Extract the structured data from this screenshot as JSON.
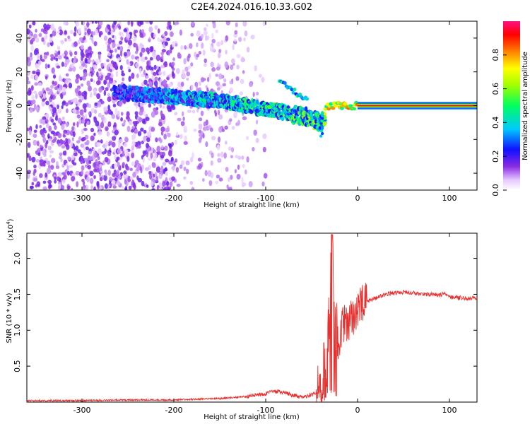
{
  "title": "C2E4.2024.016.10.33.G02",
  "chart_data": [
    {
      "type": "heatmap",
      "xlabel": "Height of straight line (km)",
      "ylabel": "Frequency (Hz)",
      "xlim": [
        -360,
        130
      ],
      "ylim": [
        -50,
        50
      ],
      "xticks": [
        -300,
        -200,
        -100,
        0,
        100
      ],
      "yticks": [
        -40,
        -20,
        0,
        20,
        40
      ],
      "colorbar": {
        "label": "Normalized spectral amplitude",
        "range": [
          0,
          1
        ],
        "ticks": [
          "0.0",
          "0.2",
          "0.4",
          "0.6",
          "0.8"
        ],
        "colormap": "rainbow (white-violet-blue-cyan-green-yellow-red-magenta)"
      },
      "signal_track": [
        {
          "x": -260,
          "y": 8,
          "amp": 0.25
        },
        {
          "x": -220,
          "y": 6,
          "amp": 0.3
        },
        {
          "x": -200,
          "y": 5,
          "amp": 0.35
        },
        {
          "x": -150,
          "y": 3,
          "amp": 0.4
        },
        {
          "x": -120,
          "y": 0,
          "amp": 0.45
        },
        {
          "x": -90,
          "y": -3,
          "amp": 0.45
        },
        {
          "x": -60,
          "y": -6,
          "amp": 0.5
        },
        {
          "x": -40,
          "y": -10,
          "amp": 0.5
        },
        {
          "x": -30,
          "y": -1,
          "amp": 0.7
        },
        {
          "x": 0,
          "y": 0,
          "amp": 0.9
        },
        {
          "x": 50,
          "y": 0,
          "amp": 0.95
        },
        {
          "x": 130,
          "y": 0,
          "amp": 0.95
        }
      ]
    },
    {
      "type": "line",
      "xlabel": "Height of straight line (km)",
      "ylabel": "SNR (10 * v/v)",
      "yscale_label": "(x10^4)",
      "xlim": [
        -360,
        130
      ],
      "ylim": [
        0,
        2.35
      ],
      "xticks": [
        -300,
        -200,
        -100,
        0,
        100
      ],
      "yticks": [
        0.5,
        1.0,
        1.5,
        2.0
      ],
      "color": "#e8302f",
      "series": [
        {
          "x": [
            -360,
            -300,
            -250,
            -200,
            -150,
            -120,
            -100,
            -90,
            -80,
            -60,
            -45,
            -40,
            -35,
            -30,
            -28,
            -25,
            -20,
            -15,
            -10,
            -5,
            0,
            10,
            20,
            30,
            40,
            50,
            60,
            70,
            80,
            90,
            95,
            100,
            110,
            120,
            130
          ],
          "values": [
            0.02,
            0.02,
            0.03,
            0.03,
            0.05,
            0.08,
            0.12,
            0.15,
            0.13,
            0.06,
            0.12,
            0.3,
            0.6,
            1.1,
            2.3,
            0.8,
            0.9,
            1.1,
            1.05,
            1.2,
            1.3,
            1.4,
            1.45,
            1.5,
            1.52,
            1.53,
            1.52,
            1.5,
            1.5,
            1.49,
            1.52,
            1.47,
            1.45,
            1.44,
            1.45
          ]
        }
      ]
    }
  ]
}
